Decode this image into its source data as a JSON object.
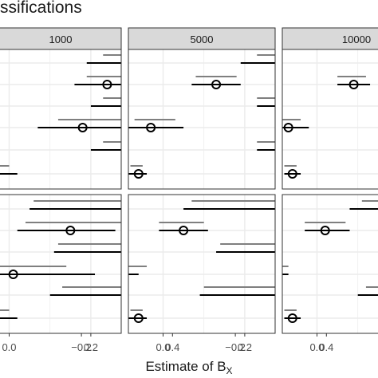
{
  "title": "ssifications",
  "xlabel": "Estimate of B",
  "xlabel_sub": "X",
  "colors": {
    "light": "#7f7f7f",
    "dark": "#000000",
    "strip": "#d9d9d9",
    "grid": "#ebebeb"
  },
  "chart_data": {
    "type": "scatter",
    "facet_columns": [
      "1000",
      "5000",
      "10000"
    ],
    "x_ticks": [
      -0.2,
      0.0,
      0.2,
      0.4
    ],
    "x_tick_labels": [
      "−0.2",
      "0.0",
      "0.2",
      "0.4"
    ],
    "xlim": [
      -0.25,
      0.52
    ],
    "reference_line_x": 0.3,
    "grid": true,
    "legend": "none",
    "panels": [
      {
        "row": 1,
        "column": "1000",
        "visible_x_ticks": [
          0.0,
          0.2,
          0.4
        ],
        "points": [
          {
            "estimate": 0.3,
            "dark": [
              0.19,
              0.4
            ],
            "light": [
              0.23,
              0.41
            ]
          },
          {
            "estimate": 0.24,
            "dark": [
              0.16,
              0.32
            ],
            "light": [
              0.19,
              0.36
            ]
          },
          {
            "estimate": 0.3,
            "dark": [
              0.2,
              0.38
            ],
            "light": [
              0.23,
              0.41
            ]
          },
          {
            "estimate": 0.18,
            "dark": [
              0.07,
              0.29
            ],
            "light": [
              0.12,
              0.3
            ]
          },
          {
            "estimate": 0.3,
            "dark": [
              0.2,
              0.39
            ],
            "light": [
              0.23,
              0.4
            ]
          },
          {
            "estimate": -0.04,
            "dark": [
              -0.09,
              0.02
            ],
            "light": [
              -0.07,
              0.0
            ]
          }
        ]
      },
      {
        "row": 1,
        "column": "5000",
        "visible_x_ticks": [
          -0.2,
          0.0,
          0.2,
          0.4
        ],
        "points": [
          {
            "estimate": 0.3,
            "dark": [
              0.19,
              0.41
            ],
            "light": [
              0.23,
              0.38
            ]
          },
          {
            "estimate": 0.13,
            "dark": [
              0.07,
              0.19
            ],
            "light": [
              0.08,
              0.18
            ]
          },
          {
            "estimate": 0.3,
            "dark": [
              0.23,
              0.36
            ],
            "light": [
              0.23,
              0.39
            ]
          },
          {
            "estimate": -0.03,
            "dark": [
              -0.09,
              0.05
            ],
            "light": [
              -0.07,
              0.03
            ]
          },
          {
            "estimate": 0.3,
            "dark": [
              0.23,
              0.37
            ],
            "light": [
              0.23,
              0.38
            ]
          },
          {
            "estimate": -0.06,
            "dark": [
              -0.09,
              -0.04
            ],
            "light": [
              -0.08,
              -0.05
            ]
          }
        ]
      },
      {
        "row": 1,
        "column": "10000",
        "visible_x_ticks": [
          -0.2,
          0.0,
          0.2
        ],
        "points": [
          {
            "estimate": 0.3,
            "dark": [
              0.22,
              0.38
            ],
            "light": [
              0.23,
              0.36
            ]
          },
          {
            "estimate": 0.09,
            "dark": [
              0.05,
              0.13
            ],
            "light": [
              0.05,
              0.12
            ]
          },
          {
            "estimate": 0.3,
            "dark": [
              0.24,
              0.36
            ],
            "light": [
              0.24,
              0.37
            ]
          },
          {
            "estimate": -0.07,
            "dark": [
              -0.11,
              -0.02
            ],
            "light": [
              -0.1,
              -0.04
            ]
          },
          {
            "estimate": 0.3,
            "dark": [
              0.24,
              0.36
            ],
            "light": [
              0.24,
              0.37
            ]
          },
          {
            "estimate": -0.06,
            "dark": [
              -0.08,
              -0.04
            ],
            "light": [
              -0.08,
              -0.05
            ]
          }
        ]
      },
      {
        "row": 2,
        "column": "1000",
        "visible_x_ticks": [
          0.0,
          0.2,
          0.4
        ],
        "points": [
          {
            "estimate": 0.3,
            "dark": [
              0.05,
              0.55
            ],
            "light": [
              0.06,
              0.52
            ]
          },
          {
            "estimate": 0.15,
            "dark": [
              0.02,
              0.26
            ],
            "light": [
              0.04,
              0.28
            ]
          },
          {
            "estimate": 0.3,
            "dark": [
              0.11,
              0.45
            ],
            "light": [
              0.12,
              0.48
            ]
          },
          {
            "estimate": 0.01,
            "dark": [
              -0.08,
              0.21
            ],
            "light": [
              -0.05,
              0.14
            ]
          },
          {
            "estimate": 0.3,
            "dark": [
              0.1,
              0.48
            ],
            "light": [
              0.13,
              0.52
            ]
          },
          {
            "estimate": -0.04,
            "dark": [
              -0.09,
              0.02
            ],
            "light": [
              -0.07,
              0.0
            ]
          }
        ]
      },
      {
        "row": 2,
        "column": "5000",
        "visible_x_ticks": [
          -0.2,
          0.0,
          0.2,
          0.4
        ],
        "points": [
          {
            "estimate": 0.3,
            "dark": [
              0.05,
              0.51
            ],
            "light": [
              0.07,
              0.49
            ]
          },
          {
            "estimate": 0.05,
            "dark": [
              -0.01,
              0.11
            ],
            "light": [
              -0.01,
              0.1
            ]
          },
          {
            "estimate": 0.3,
            "dark": [
              0.13,
              0.45
            ],
            "light": [
              0.14,
              0.46
            ]
          },
          {
            "estimate": -0.1,
            "dark": [
              -0.14,
              -0.06
            ],
            "light": [
              -0.15,
              -0.04
            ]
          },
          {
            "estimate": 0.3,
            "dark": [
              0.09,
              0.48
            ],
            "light": [
              0.1,
              0.49
            ]
          },
          {
            "estimate": -0.06,
            "dark": [
              -0.09,
              -0.04
            ],
            "light": [
              -0.08,
              -0.05
            ]
          }
        ]
      },
      {
        "row": 2,
        "column": "10000",
        "visible_x_ticks": [
          -0.2,
          0.0,
          0.2
        ],
        "points": [
          {
            "estimate": 0.3,
            "dark": [
              0.08,
              0.5
            ],
            "light": [
              0.11,
              0.47
            ]
          },
          {
            "estimate": 0.02,
            "dark": [
              -0.03,
              0.08
            ],
            "light": [
              -0.03,
              0.07
            ]
          },
          {
            "estimate": 0.3,
            "dark": [
              0.16,
              0.44
            ],
            "light": [
              0.16,
              0.44
            ]
          },
          {
            "estimate": -0.11,
            "dark": [
              -0.15,
              -0.07
            ],
            "light": [
              -0.15,
              -0.07
            ]
          },
          {
            "estimate": 0.3,
            "dark": [
              0.1,
              0.49
            ],
            "light": [
              0.12,
              0.5
            ]
          },
          {
            "estimate": -0.06,
            "dark": [
              -0.08,
              -0.04
            ],
            "light": [
              -0.08,
              -0.05
            ]
          }
        ]
      }
    ]
  }
}
